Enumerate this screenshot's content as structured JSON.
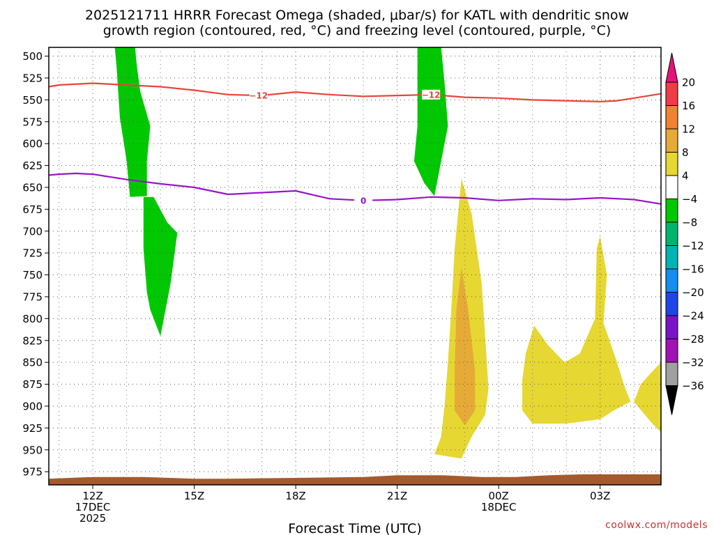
{
  "chart_data": {
    "type": "time-height",
    "title_lines": [
      "2025121711 HRRR Forecast Omega (shaded, μbar/s) for KATL with dendritic snow",
      "growth region (contoured, red, °C) and freezing level (contoured, purple, °C)"
    ],
    "xlabel": "Forecast Time (UTC)",
    "credit": "coolwx.com/models",
    "x_range_hours": [
      10.7,
      28.8
    ],
    "x_ticks": [
      {
        "hour": 12,
        "lines": [
          "12Z",
          "17DEC",
          "2025"
        ]
      },
      {
        "hour": 15,
        "lines": [
          "15Z"
        ]
      },
      {
        "hour": 18,
        "lines": [
          "18Z"
        ]
      },
      {
        "hour": 21,
        "lines": [
          "21Z"
        ]
      },
      {
        "hour": 24,
        "lines": [
          "00Z",
          "18DEC"
        ]
      },
      {
        "hour": 27,
        "lines": [
          "03Z"
        ]
      }
    ],
    "y_range_mb": [
      490,
      990
    ],
    "y_ticks": [
      500,
      525,
      550,
      575,
      600,
      625,
      650,
      675,
      700,
      725,
      750,
      775,
      800,
      825,
      850,
      875,
      900,
      925,
      950,
      975
    ],
    "grid": true,
    "colorbar": {
      "ticks": [
        "20",
        "16",
        "12",
        "8",
        "4",
        "−4",
        "−8",
        "−12",
        "−16",
        "−20",
        "−24",
        "−28",
        "−32",
        "−36"
      ],
      "colors": [
        "#f03c46",
        "#f08232",
        "#e6aa37",
        "#e6d732",
        "#ffffff",
        "#00c800",
        "#00b46e",
        "#00b4b4",
        "#148cf0",
        "#1e46e6",
        "#7814c8",
        "#a014b4",
        "#a0a0a0"
      ],
      "top_arrow_color": "#e61478",
      "bottom_arrow_color": "#000000"
    },
    "contours": [
      {
        "name": "dendritic growth region",
        "label": "−12",
        "color": "#e8443a",
        "points": [
          [
            10.7,
            535
          ],
          [
            11,
            533
          ],
          [
            12,
            531
          ],
          [
            13,
            533
          ],
          [
            14,
            535
          ],
          [
            15,
            539
          ],
          [
            16,
            544
          ],
          [
            17,
            545
          ],
          [
            18,
            541
          ],
          [
            19,
            544
          ],
          [
            20,
            546
          ],
          [
            21,
            545
          ],
          [
            22,
            544
          ],
          [
            23,
            547
          ],
          [
            24,
            548
          ],
          [
            25,
            550
          ],
          [
            26,
            551
          ],
          [
            27,
            552
          ],
          [
            27.5,
            551
          ],
          [
            28,
            548
          ],
          [
            28.8,
            543
          ]
        ],
        "labels_at_hours": [
          16.9,
          22
        ]
      },
      {
        "name": "freezing level",
        "label": "0",
        "color": "#9a13c8",
        "points": [
          [
            10.7,
            636
          ],
          [
            11,
            635
          ],
          [
            11.5,
            634
          ],
          [
            12,
            635
          ],
          [
            13,
            641
          ],
          [
            14,
            646
          ],
          [
            15,
            650
          ],
          [
            16,
            658
          ],
          [
            17,
            656
          ],
          [
            18,
            654
          ],
          [
            19,
            663
          ],
          [
            20,
            665
          ],
          [
            21,
            664
          ],
          [
            22,
            661
          ],
          [
            23,
            662
          ],
          [
            24,
            665
          ],
          [
            25,
            663
          ],
          [
            26,
            664
          ],
          [
            27,
            662
          ],
          [
            28,
            664
          ],
          [
            28.8,
            669
          ]
        ],
        "labels_at_hours": [
          20
        ]
      }
    ],
    "shaded_regions": [
      {
        "value_range": [
          -8,
          -4
        ],
        "color": "#00c800",
        "points": [
          [
            12.65,
            490
          ],
          [
            13.25,
            490
          ],
          [
            13.3,
            510
          ],
          [
            13.4,
            540
          ],
          [
            13.7,
            580
          ],
          [
            13.6,
            620
          ],
          [
            13.6,
            660
          ],
          [
            13.1,
            661
          ],
          [
            13.0,
            620
          ],
          [
            12.8,
            570
          ],
          [
            12.7,
            510
          ]
        ]
      },
      {
        "value_range": [
          -8,
          -4
        ],
        "color": "#00c800",
        "points": [
          [
            13.5,
            661
          ],
          [
            13.8,
            661
          ],
          [
            14.2,
            690
          ],
          [
            14.5,
            702
          ],
          [
            14.3,
            760
          ],
          [
            14.0,
            820
          ],
          [
            13.7,
            790
          ],
          [
            13.6,
            770
          ],
          [
            13.5,
            720
          ]
        ]
      },
      {
        "value_range": [
          -8,
          -4
        ],
        "color": "#00c800",
        "points": [
          [
            21.6,
            490
          ],
          [
            22.3,
            490
          ],
          [
            22.4,
            530
          ],
          [
            22.5,
            580
          ],
          [
            22.3,
            620
          ],
          [
            22.1,
            660
          ],
          [
            21.8,
            645
          ],
          [
            21.5,
            620
          ],
          [
            21.6,
            580
          ],
          [
            21.6,
            530
          ]
        ]
      },
      {
        "value_range": [
          4,
          8
        ],
        "color": "#e6d732",
        "points": [
          [
            22.9,
            640
          ],
          [
            23.2,
            680
          ],
          [
            23.5,
            760
          ],
          [
            23.6,
            820
          ],
          [
            23.7,
            880
          ],
          [
            23.6,
            910
          ],
          [
            23.2,
            935
          ],
          [
            22.9,
            960
          ],
          [
            22.1,
            955
          ],
          [
            22.3,
            935
          ],
          [
            22.4,
            900
          ],
          [
            22.5,
            850
          ],
          [
            22.6,
            790
          ],
          [
            22.7,
            720
          ]
        ]
      },
      {
        "value_range": [
          8,
          12
        ],
        "color": "#e6aa37",
        "points": [
          [
            22.9,
            742
          ],
          [
            23.1,
            790
          ],
          [
            23.3,
            860
          ],
          [
            23.3,
            905
          ],
          [
            23.0,
            922
          ],
          [
            22.7,
            905
          ],
          [
            22.7,
            860
          ],
          [
            22.75,
            790
          ]
        ]
      },
      {
        "value_range": [
          4,
          8
        ],
        "color": "#e6d732",
        "points": [
          [
            25.05,
            808
          ],
          [
            25.45,
            830
          ],
          [
            25.95,
            850
          ],
          [
            26.4,
            840
          ],
          [
            26.85,
            800
          ],
          [
            26.9,
            720
          ],
          [
            27.0,
            706
          ],
          [
            27.2,
            750
          ],
          [
            27.1,
            805
          ],
          [
            27.5,
            850
          ],
          [
            27.7,
            875
          ],
          [
            27.9,
            895
          ],
          [
            27.4,
            905
          ],
          [
            27.0,
            915
          ],
          [
            26.0,
            920
          ],
          [
            25.0,
            920
          ],
          [
            24.7,
            905
          ],
          [
            24.7,
            870
          ],
          [
            24.8,
            840
          ]
        ]
      },
      {
        "value_range": [
          4,
          8
        ],
        "color": "#e6d732",
        "points": [
          [
            28.8,
            850
          ],
          [
            28.8,
            930
          ],
          [
            28.5,
            918
          ],
          [
            28.0,
            895
          ],
          [
            28.2,
            875
          ],
          [
            28.6,
            858
          ]
        ]
      }
    ],
    "terrain": {
      "color": "#a55a2d",
      "points": [
        [
          10.7,
          983
        ],
        [
          12,
          981
        ],
        [
          13.5,
          981
        ],
        [
          15.0,
          983
        ],
        [
          16.0,
          983
        ],
        [
          18.0,
          982
        ],
        [
          20.0,
          981
        ],
        [
          21.0,
          979
        ],
        [
          22.3,
          979
        ],
        [
          23.5,
          981
        ],
        [
          24.5,
          981
        ],
        [
          25.5,
          979
        ],
        [
          26.5,
          978
        ],
        [
          28.0,
          978
        ],
        [
          28.8,
          978
        ]
      ]
    }
  }
}
